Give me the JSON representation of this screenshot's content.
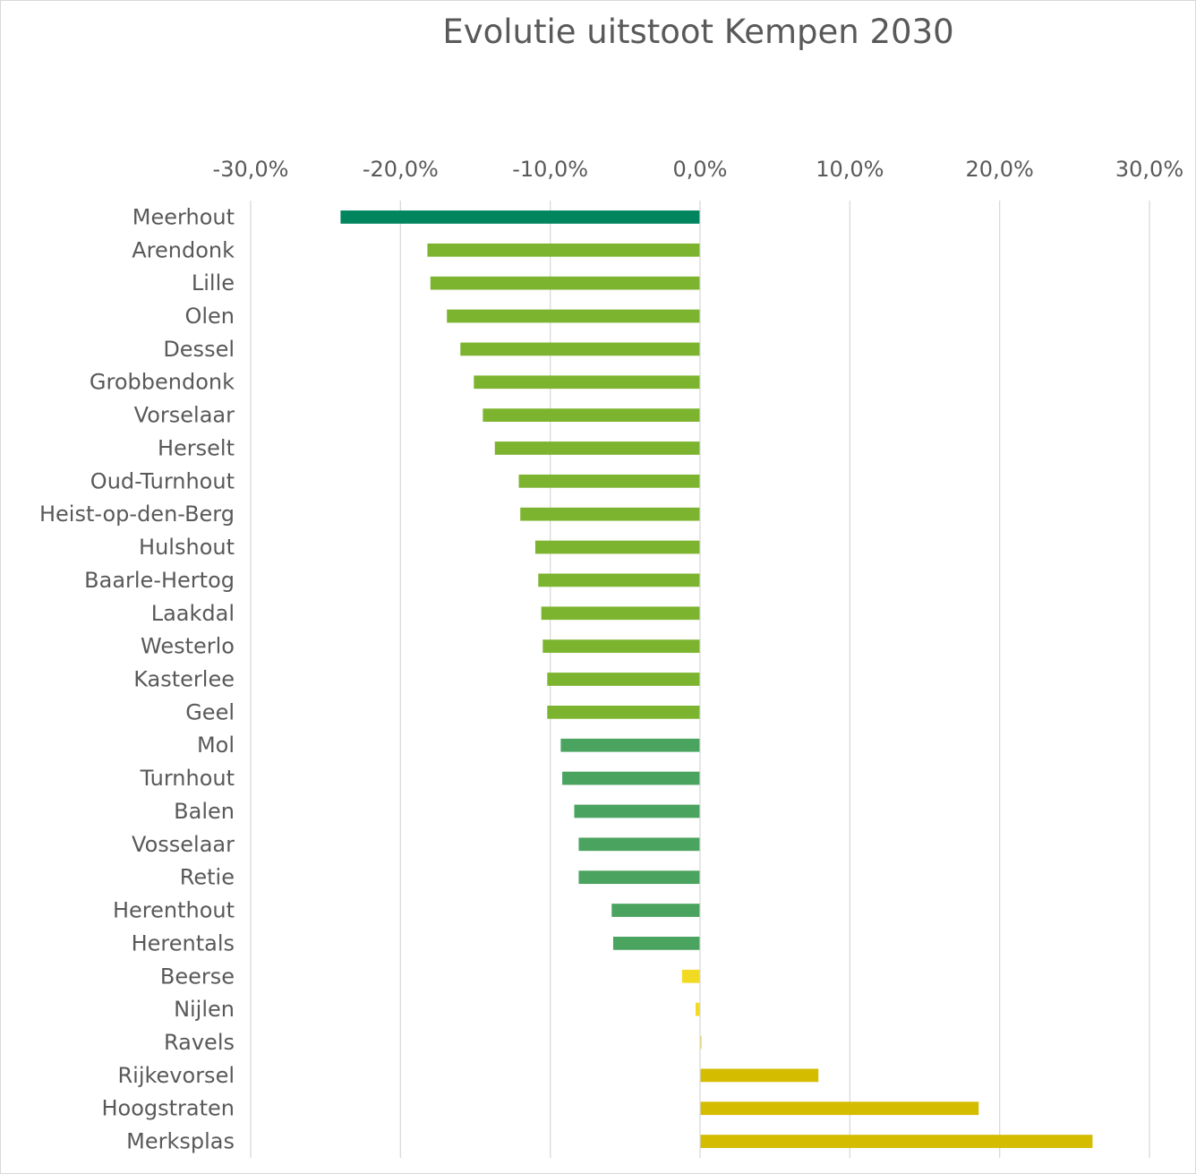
{
  "chart_data": {
    "type": "bar",
    "orientation": "horizontal",
    "title": "Evolutie uitstoot Kempen 2030",
    "xlabel": "",
    "ylabel": "",
    "xlim": [
      -0.3,
      0.3
    ],
    "xticks": [
      -0.3,
      -0.2,
      -0.1,
      0,
      0.1,
      0.2,
      0.3
    ],
    "xtick_labels": [
      "-30,0%",
      "-20,0%",
      "-10,0%",
      "0,0%",
      "10,0%",
      "20,0%",
      "30,0%"
    ],
    "x_axis_position": "top",
    "grid": "vertical",
    "categories": [
      "Meerhout",
      "Arendonk",
      "Lille",
      "Olen",
      "Dessel",
      "Grobbendonk",
      "Vorselaar",
      "Herselt",
      "Oud-Turnhout",
      "Heist-op-den-Berg",
      "Hulshout",
      "Baarle-Hertog",
      "Laakdal",
      "Westerlo",
      "Kasterlee",
      "Geel",
      "Mol",
      "Turnhout",
      "Balen",
      "Vosselaar",
      "Retie",
      "Herenthout",
      "Herentals",
      "Beerse",
      "Nijlen",
      "Ravels",
      "Rijkevorsel",
      "Hoogstraten",
      "Merksplas"
    ],
    "values": [
      -0.24,
      -0.182,
      -0.18,
      -0.169,
      -0.16,
      -0.151,
      -0.145,
      -0.137,
      -0.121,
      -0.12,
      -0.11,
      -0.108,
      -0.106,
      -0.105,
      -0.102,
      -0.102,
      -0.093,
      -0.092,
      -0.084,
      -0.081,
      -0.081,
      -0.059,
      -0.058,
      -0.012,
      -0.003,
      0.001,
      0.079,
      0.186,
      0.262
    ],
    "bar_colors": [
      "#00855f",
      "#7db42f",
      "#7db42f",
      "#7db42f",
      "#7db42f",
      "#7db42f",
      "#7db42f",
      "#7db42f",
      "#7db42f",
      "#7db42f",
      "#7db42f",
      "#7db42f",
      "#7db42f",
      "#7db42f",
      "#7db42f",
      "#7db42f",
      "#4aa35f",
      "#4aa35f",
      "#4aa35f",
      "#4aa35f",
      "#4aa35f",
      "#4aa35f",
      "#4aa35f",
      "#f2d922",
      "#f2d922",
      "#f2d922",
      "#d4bc00",
      "#d4bc00",
      "#d4bc00"
    ],
    "axis_color": "#595959",
    "grid_color": "#d9d9d9"
  }
}
